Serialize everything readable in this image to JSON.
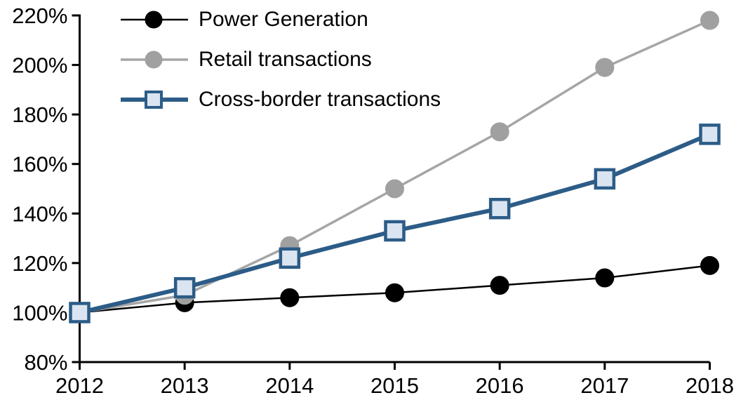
{
  "chart_data": {
    "type": "line",
    "title": "",
    "categories": [
      2012,
      2013,
      2014,
      2015,
      2016,
      2017,
      2018
    ],
    "x_tick_labels": [
      "2012",
      "2013",
      "2014",
      "2015",
      "2016",
      "2017",
      "2018"
    ],
    "y_ticks": [
      220,
      200,
      180,
      160,
      140,
      120,
      100,
      80
    ],
    "y_tick_labels": [
      "220%",
      "200%",
      "180%",
      "160%",
      "140%",
      "120%",
      "100%",
      "80%"
    ],
    "ylim": [
      80,
      220
    ],
    "xlabel": "",
    "ylabel": "",
    "grid": false,
    "legend_position": "top-left",
    "background_color": "#ffffff",
    "axis_color": "#000000",
    "series": [
      {
        "name": "Power Generation",
        "values": [
          100,
          104,
          106,
          108,
          111,
          114,
          119
        ],
        "line_color": "#000000",
        "line_width": 2.5,
        "marker": "circle",
        "marker_fill": "#000000",
        "marker_stroke": "#000000",
        "marker_size": 13
      },
      {
        "name": "Retail transactions",
        "values": [
          100,
          107,
          127,
          150,
          173,
          199,
          218
        ],
        "line_color": "#a6a6a6",
        "line_width": 3.5,
        "marker": "circle",
        "marker_fill": "#a0a0a0",
        "marker_stroke": "#a0a0a0",
        "marker_size": 13
      },
      {
        "name": "Cross-border transactions",
        "values": [
          100,
          110,
          122,
          133,
          142,
          154,
          172
        ],
        "line_color": "#2c5c87",
        "line_width": 6,
        "marker": "square",
        "marker_fill": "#dbe5f1",
        "marker_stroke": "#2c5c87",
        "marker_size": 13
      }
    ]
  }
}
